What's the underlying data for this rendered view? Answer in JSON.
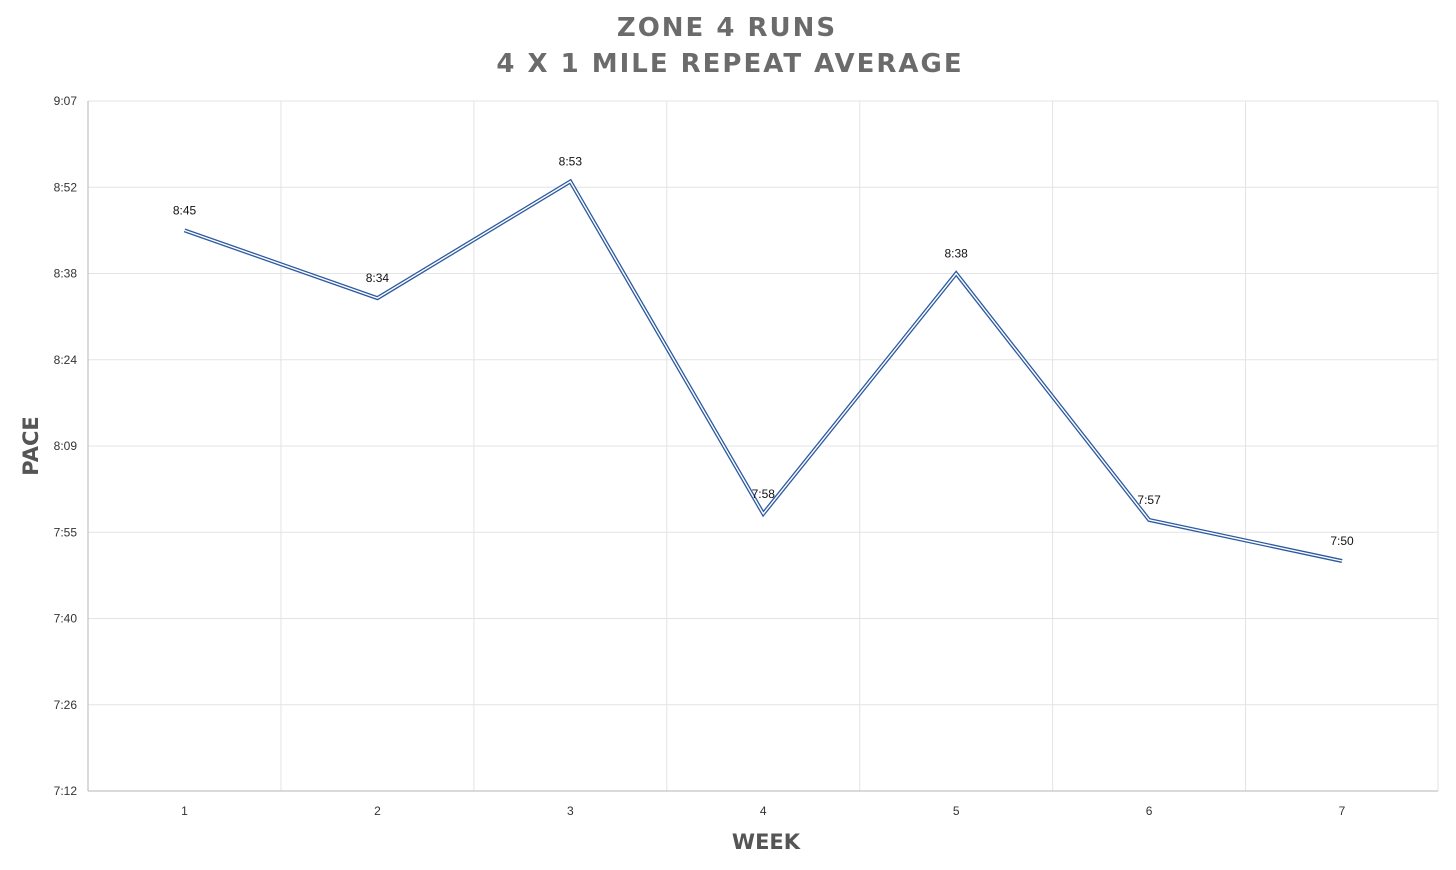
{
  "chart_data": {
    "type": "line",
    "title": "ZONE 4 RUNS",
    "subtitle": "4 X 1 MILE REPEAT AVERAGE",
    "xlabel": "WEEK",
    "ylabel": "PACE",
    "categories": [
      "1",
      "2",
      "3",
      "4",
      "5",
      "6",
      "7"
    ],
    "y_ticks": [
      "7:12",
      "7:26",
      "7:40",
      "7:55",
      "8:09",
      "8:24",
      "8:38",
      "8:52",
      "9:07"
    ],
    "ylim": [
      "7:12",
      "9:07"
    ],
    "series": [
      {
        "values": [
          "8:45",
          "8:34",
          "8:53",
          "7:58",
          "8:38",
          "7:57",
          "7:50"
        ],
        "color": "#2c5aa0",
        "style": "double-line"
      }
    ],
    "data_labels": [
      "8:45",
      "8:34",
      "8:53",
      "7:58",
      "8:38",
      "7:57",
      "7:50"
    ],
    "grid": true,
    "legend": "none"
  }
}
